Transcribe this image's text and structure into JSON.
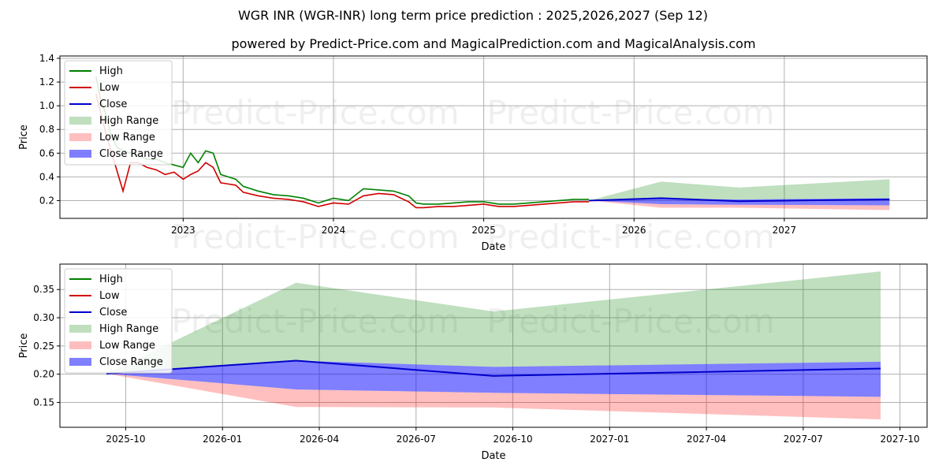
{
  "title_line1": "WGR INR (WGR-INR) long term price prediction : 2025,2026,2027 (Sep 12)",
  "title_line2": "powered by Predict-Price.com and MagicalPrediction.com and MagicalAnalysis.com",
  "watermark_text": "Predict-Price.com",
  "colors": {
    "high": "#008000",
    "low": "#d00000",
    "close": "#0000cc",
    "high_range": "#008000",
    "low_range": "#ff0000",
    "close_range": "#0000ff",
    "grid": "#b0b0b0"
  },
  "chart_data": [
    {
      "type": "line",
      "panel": "top",
      "title": "",
      "xlabel": "Date",
      "ylabel": "Price",
      "xlim": [
        2022.18,
        2027.95
      ],
      "ylim": [
        0.05,
        1.42
      ],
      "x_ticks": [
        2023,
        2024,
        2025,
        2026,
        2027
      ],
      "x_tick_labels": [
        "2023",
        "2024",
        "2025",
        "2026",
        "2027"
      ],
      "y_ticks": [
        0.2,
        0.4,
        0.6,
        0.8,
        1.0,
        1.2,
        1.4
      ],
      "y_tick_labels": [
        "0.2",
        "0.4",
        "0.6",
        "0.8",
        "1.0",
        "1.2",
        "1.4"
      ],
      "grid": true,
      "legend": [
        "High",
        "Low",
        "Close",
        "High Range",
        "Low Range",
        "Close Range"
      ],
      "legend_position": "upper-left",
      "history": {
        "x": [
          2022.42,
          2022.45,
          2022.48,
          2022.52,
          2022.56,
          2022.6,
          2022.65,
          2022.7,
          2022.76,
          2022.82,
          2022.88,
          2022.94,
          2023.0,
          2023.05,
          2023.1,
          2023.15,
          2023.2,
          2023.25,
          2023.3,
          2023.35,
          2023.4,
          2023.5,
          2023.6,
          2023.7,
          2023.8,
          2023.9,
          2024.0,
          2024.1,
          2024.2,
          2024.3,
          2024.4,
          2024.5,
          2024.55,
          2024.6,
          2024.7,
          2024.8,
          2024.9,
          2025.0,
          2025.1,
          2025.2,
          2025.3,
          2025.4,
          2025.5,
          2025.6,
          2025.7
        ],
        "high": [
          1.25,
          1.05,
          0.95,
          0.75,
          0.65,
          0.62,
          0.6,
          0.58,
          0.55,
          0.55,
          0.52,
          0.5,
          0.48,
          0.6,
          0.52,
          0.62,
          0.6,
          0.42,
          0.4,
          0.38,
          0.32,
          0.28,
          0.25,
          0.24,
          0.22,
          0.18,
          0.22,
          0.2,
          0.3,
          0.29,
          0.28,
          0.24,
          0.18,
          0.17,
          0.17,
          0.18,
          0.19,
          0.19,
          0.17,
          0.17,
          0.18,
          0.19,
          0.2,
          0.21,
          0.21
        ],
        "low": [
          1.1,
          0.95,
          0.8,
          0.62,
          0.45,
          0.28,
          0.52,
          0.52,
          0.48,
          0.46,
          0.42,
          0.44,
          0.38,
          0.42,
          0.45,
          0.52,
          0.48,
          0.35,
          0.34,
          0.33,
          0.27,
          0.24,
          0.22,
          0.21,
          0.19,
          0.15,
          0.18,
          0.17,
          0.24,
          0.26,
          0.25,
          0.19,
          0.14,
          0.14,
          0.15,
          0.15,
          0.16,
          0.17,
          0.15,
          0.15,
          0.16,
          0.17,
          0.18,
          0.19,
          0.19
        ]
      },
      "forecast": {
        "x": [
          2025.7,
          2026.18,
          2026.7,
          2027.7
        ],
        "close": [
          0.2,
          0.22,
          0.195,
          0.21
        ],
        "high_range_top": [
          0.2,
          0.36,
          0.31,
          0.38
        ],
        "close_range_top": [
          0.2,
          0.215,
          0.21,
          0.22
        ],
        "close_range_bottom": [
          0.2,
          0.17,
          0.165,
          0.16
        ],
        "low_range_bottom": [
          0.2,
          0.14,
          0.14,
          0.12
        ]
      }
    },
    {
      "type": "line",
      "panel": "bottom",
      "title": "",
      "xlabel": "Date",
      "ylabel": "Price",
      "xlim": [
        2025.58,
        2027.82
      ],
      "ylim": [
        0.106,
        0.395
      ],
      "x_ticks": [
        2025.75,
        2026.0,
        2026.25,
        2026.5,
        2026.75,
        2027.0,
        2027.25,
        2027.5,
        2027.75
      ],
      "x_tick_labels": [
        "2025-10",
        "2026-01",
        "2026-04",
        "2026-07",
        "2026-10",
        "2027-01",
        "2027-04",
        "2027-07",
        "2027-10"
      ],
      "y_ticks": [
        0.15,
        0.2,
        0.25,
        0.3,
        0.35
      ],
      "y_tick_labels": [
        "0.15",
        "0.20",
        "0.25",
        "0.30",
        "0.35"
      ],
      "grid": true,
      "legend": [
        "High",
        "Low",
        "Close",
        "High Range",
        "Low Range",
        "Close Range"
      ],
      "legend_position": "upper-left",
      "forecast": {
        "x": [
          2025.7,
          2026.19,
          2026.7,
          2027.7
        ],
        "close": [
          0.201,
          0.224,
          0.197,
          0.21
        ],
        "high_range_top": [
          0.201,
          0.362,
          0.311,
          0.382
        ],
        "close_range_top": [
          0.201,
          0.224,
          0.213,
          0.222
        ],
        "close_range_bottom": [
          0.201,
          0.173,
          0.167,
          0.16
        ],
        "low_range_bottom": [
          0.201,
          0.142,
          0.141,
          0.12
        ]
      }
    }
  ]
}
